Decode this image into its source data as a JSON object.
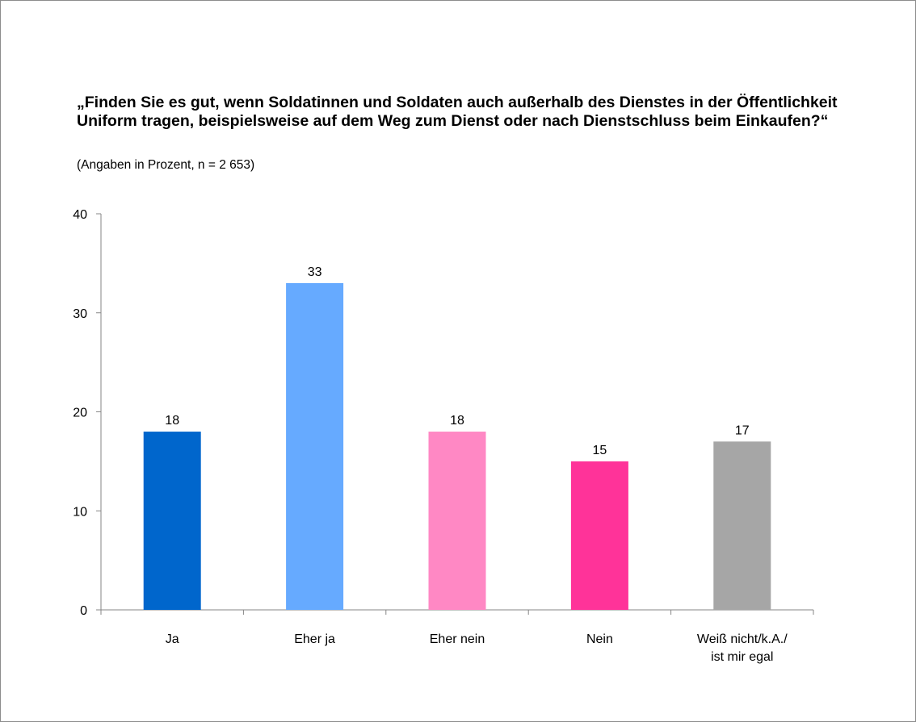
{
  "title": "„Finden Sie es gut, wenn Soldatinnen und Soldaten auch außerhalb des Dienstes in der Öffentlichkeit Uniform tragen, beispielsweise auf dem Weg zum Dienst oder nach Dienstschluss beim Einkaufen?“",
  "subtitle": "(Angaben in Prozent, n = 2 653)",
  "chart_data": {
    "type": "bar",
    "categories": [
      "Ja",
      "Eher ja",
      "Eher nein",
      "Nein",
      "Weiß nicht/k.A./\nist mir egal"
    ],
    "values": [
      18,
      33,
      18,
      15,
      17
    ],
    "colors": [
      "#0066cc",
      "#66aaff",
      "#ff88c4",
      "#ff3399",
      "#a6a6a6"
    ],
    "ylim": [
      0,
      40
    ],
    "yticks": [
      0,
      10,
      20,
      30,
      40
    ],
    "xlabel": "",
    "ylabel": "",
    "grid": false,
    "legend": "none"
  }
}
